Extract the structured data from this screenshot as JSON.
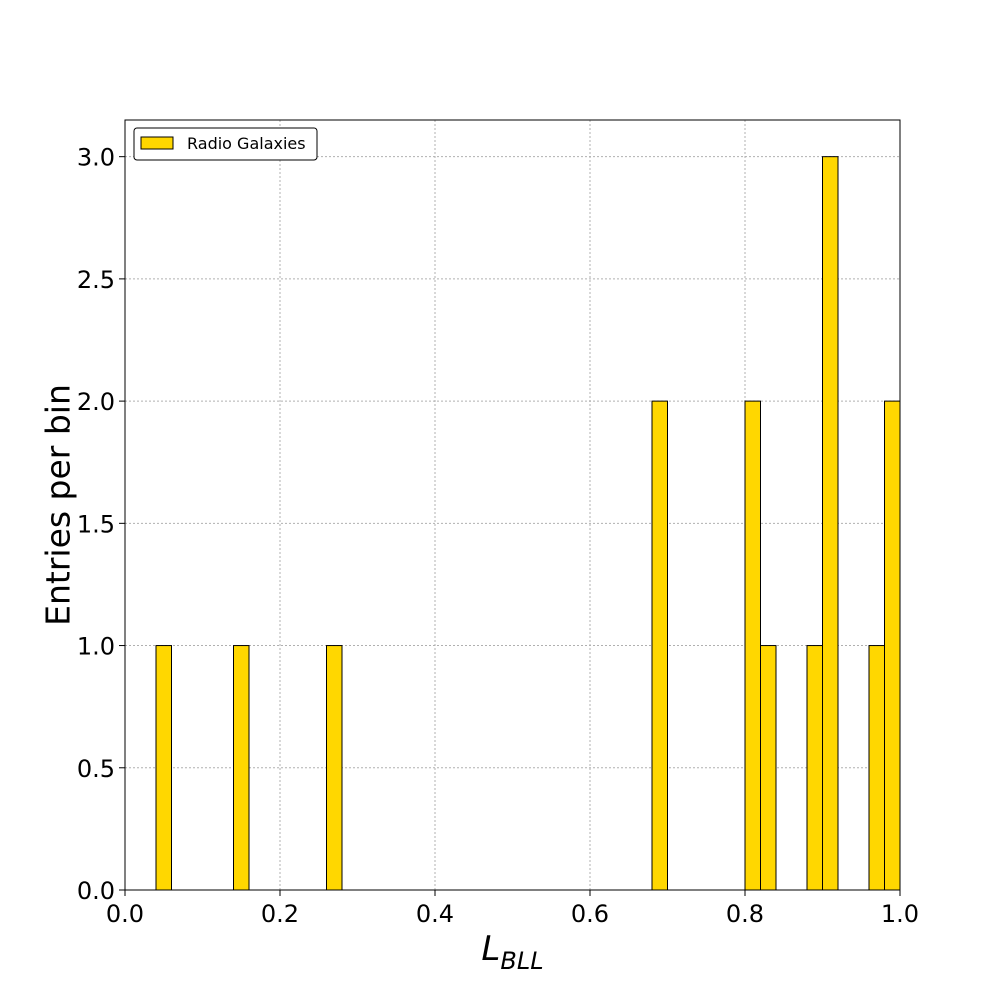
{
  "chart_data": {
    "type": "bar",
    "title": "",
    "xlabel": "L",
    "xlabel_subscript": "BLL",
    "ylabel": "Entries per bin",
    "xlim": [
      0.0,
      1.0
    ],
    "ylim": [
      0.0,
      3.15
    ],
    "grid": true,
    "legend_position": "top-left",
    "bar_color": "#ffd700",
    "bar_edge_color": "#000000",
    "bin_width": 0.02,
    "x_ticks": [
      0.0,
      0.2,
      0.4,
      0.6,
      0.8,
      1.0
    ],
    "x_tick_labels": [
      "0.0",
      "0.2",
      "0.4",
      "0.6",
      "0.8",
      "1.0"
    ],
    "y_ticks": [
      0.0,
      0.5,
      1.0,
      1.5,
      2.0,
      2.5,
      3.0
    ],
    "y_tick_labels": [
      "0.0",
      "0.5",
      "1.0",
      "1.5",
      "2.0",
      "2.5",
      "3.0"
    ],
    "series": [
      {
        "name": "Radio Galaxies",
        "color": "#ffd700",
        "bins": [
          {
            "x0": 0.04,
            "x1": 0.06,
            "value": 1
          },
          {
            "x0": 0.14,
            "x1": 0.16,
            "value": 1
          },
          {
            "x0": 0.26,
            "x1": 0.28,
            "value": 1
          },
          {
            "x0": 0.68,
            "x1": 0.7,
            "value": 2
          },
          {
            "x0": 0.8,
            "x1": 0.82,
            "value": 2
          },
          {
            "x0": 0.82,
            "x1": 0.84,
            "value": 1
          },
          {
            "x0": 0.88,
            "x1": 0.9,
            "value": 1
          },
          {
            "x0": 0.9,
            "x1": 0.92,
            "value": 3
          },
          {
            "x0": 0.96,
            "x1": 0.98,
            "value": 1
          },
          {
            "x0": 0.98,
            "x1": 1.0,
            "value": 2
          }
        ]
      }
    ]
  }
}
